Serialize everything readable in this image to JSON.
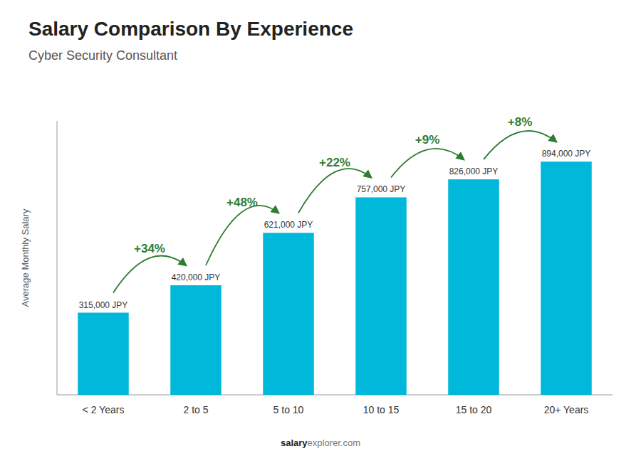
{
  "chart_data": {
    "type": "bar",
    "title": "Salary Comparison By Experience",
    "subtitle": "Cyber Security Consultant",
    "y_label": "Average Monthly Salary",
    "footer": [
      "salary",
      "explorer.com"
    ],
    "categories": [
      "< 2 Years",
      "2 to 5",
      "5 to 10",
      "10 to 15",
      "15 to 20",
      "20+ Years"
    ],
    "values": [
      315000,
      420000,
      621000,
      757000,
      826000,
      894000
    ],
    "value_labels": [
      "315,000 JPY",
      "420,000 JPY",
      "621,000 JPY",
      "757,000 JPY",
      "826,000 JPY",
      "894,000 JPY"
    ],
    "data_labels": true,
    "annotations": [
      "+34%",
      "+48%",
      "+22%",
      "+9%",
      "+8%"
    ],
    "color": "#00b8d9",
    "ylim": [
      0,
      1050000
    ],
    "yticks": [],
    "tick_labels": "x",
    "grid": false
  }
}
